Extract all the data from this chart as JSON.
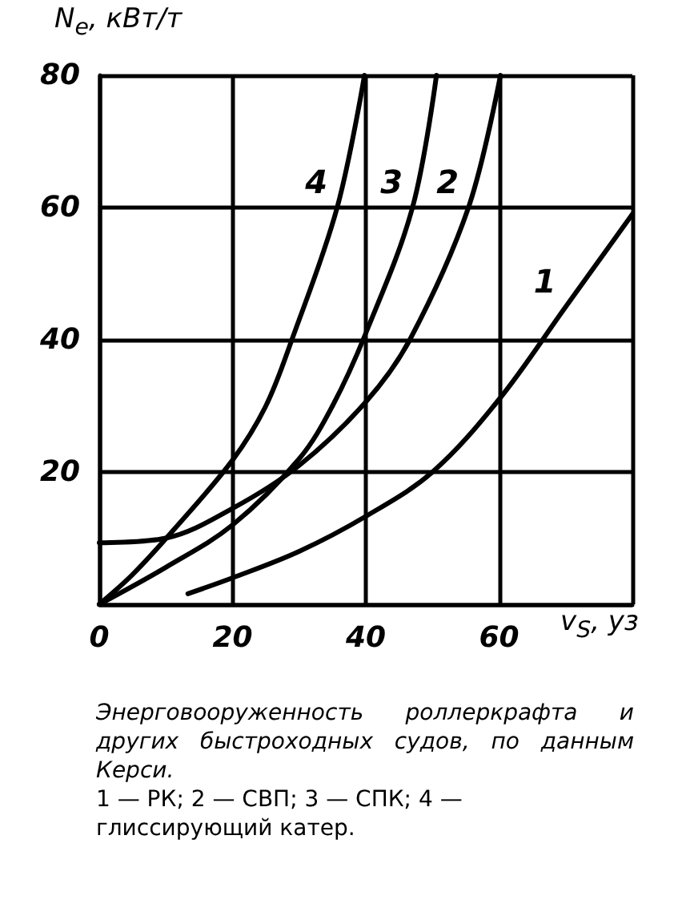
{
  "chart_data": {
    "type": "line",
    "xlabel": "v$_{S}$, уз",
    "ylabel": "N$_{e}$, кВт/т",
    "xlim": [
      0,
      80
    ],
    "xticks": [
      0,
      20,
      40,
      60,
      {
        "value": 80,
        "label": null
      }
    ],
    "ylim": [
      0,
      80
    ],
    "yticks": [
      {
        "value": 0,
        "label": null
      },
      20,
      40,
      60,
      80
    ],
    "grid": true,
    "marker": "none",
    "line_style": "solid",
    "series": [
      {
        "name": "1",
        "color": "#000000",
        "x": [
          13.3,
          20,
          30,
          40,
          50,
          60,
          70,
          80
        ],
        "values": [
          1.6,
          4,
          8,
          13.3,
          20,
          31,
          45,
          59
        ]
      },
      {
        "name": "2",
        "color": "#000000",
        "x": [
          0,
          10,
          20,
          30,
          40,
          46.6,
          55.4,
          60.2
        ],
        "values": [
          9.3,
          10,
          14.5,
          21,
          30.6,
          40,
          60,
          80
        ]
      },
      {
        "name": "3",
        "color": "#000000",
        "x": [
          0,
          10,
          20,
          30,
          35,
          40,
          47,
          50.6
        ],
        "values": [
          0,
          5.6,
          12,
          22,
          30,
          41,
          60,
          80
        ]
      },
      {
        "name": "4",
        "color": "#000000",
        "x": [
          0,
          5,
          11.2,
          20,
          25,
          28.9,
          35.7,
          39.8
        ],
        "values": [
          0,
          4.5,
          11.3,
          21.8,
          30,
          40,
          60,
          80
        ]
      }
    ],
    "annotations": [
      "Энерговооруженность роллеркрафта и других быстроходных судов, по данным Керси.",
      "1 — РК; 2 — СВП; 3 — СПК; 4 — глиссирующий катер."
    ]
  }
}
